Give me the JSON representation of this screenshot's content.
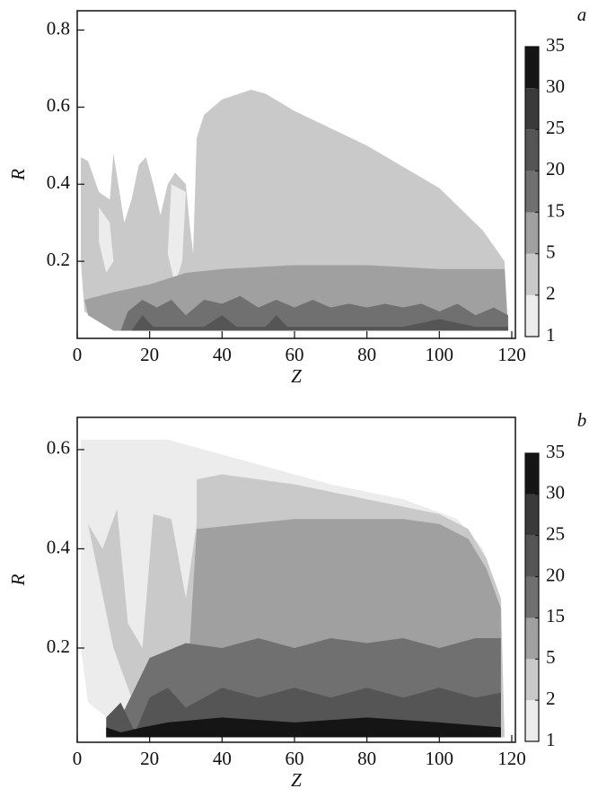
{
  "chart_data": [
    {
      "type": "heatmap",
      "panel_label": "a",
      "xlabel": "Z",
      "ylabel": "R",
      "xlim": [
        0,
        121
      ],
      "ylim": [
        0,
        0.85
      ],
      "xticks": [
        0,
        20,
        40,
        60,
        80,
        100,
        120
      ],
      "yticks": [
        0.2,
        0.4,
        0.6,
        0.8
      ],
      "colorbar": {
        "levels": [
          1,
          2,
          5,
          15,
          20,
          25,
          30,
          35
        ],
        "colors": [
          "#ececec",
          "#c9c9c9",
          "#a0a0a0",
          "#707070",
          "#555555",
          "#3a3a3a",
          "#151515"
        ]
      },
      "regions": [
        {
          "level": 2,
          "points": [
            [
              1,
              0.47
            ],
            [
              3,
              0.46
            ],
            [
              6,
              0.38
            ],
            [
              9,
              0.36
            ],
            [
              10,
              0.48
            ],
            [
              11,
              0.42
            ],
            [
              13,
              0.3
            ],
            [
              15,
              0.36
            ],
            [
              17,
              0.45
            ],
            [
              19,
              0.47
            ],
            [
              21,
              0.4
            ],
            [
              23,
              0.32
            ],
            [
              25,
              0.4
            ],
            [
              27,
              0.43
            ],
            [
              30,
              0.4
            ],
            [
              31,
              0.3
            ],
            [
              32,
              0.22
            ],
            [
              33,
              0.52
            ],
            [
              35,
              0.58
            ],
            [
              40,
              0.62
            ],
            [
              48,
              0.645
            ],
            [
              52,
              0.635
            ],
            [
              60,
              0.59
            ],
            [
              80,
              0.5
            ],
            [
              100,
              0.39
            ],
            [
              112,
              0.28
            ],
            [
              118,
              0.2
            ],
            [
              119,
              0.02
            ],
            [
              10,
              0.02
            ],
            [
              2,
              0.07
            ],
            [
              1,
              0.2
            ]
          ]
        },
        {
          "level": 1,
          "points": [
            [
              6,
              0.34
            ],
            [
              9,
              0.3
            ],
            [
              10,
              0.2
            ],
            [
              8,
              0.17
            ],
            [
              6,
              0.25
            ]
          ]
        },
        {
          "level": 1,
          "points": [
            [
              26,
              0.4
            ],
            [
              30,
              0.38
            ],
            [
              29,
              0.2
            ],
            [
              27,
              0.14
            ],
            [
              25,
              0.22
            ]
          ]
        },
        {
          "level": 5,
          "points": [
            [
              2,
              0.1
            ],
            [
              10,
              0.12
            ],
            [
              20,
              0.14
            ],
            [
              30,
              0.17
            ],
            [
              40,
              0.18
            ],
            [
              60,
              0.19
            ],
            [
              80,
              0.19
            ],
            [
              100,
              0.18
            ],
            [
              118,
              0.18
            ],
            [
              119,
              0.02
            ],
            [
              10,
              0.02
            ],
            [
              3,
              0.06
            ]
          ]
        },
        {
          "level": 15,
          "points": [
            [
              12,
              0.02
            ],
            [
              14,
              0.07
            ],
            [
              18,
              0.1
            ],
            [
              22,
              0.08
            ],
            [
              26,
              0.1
            ],
            [
              30,
              0.06
            ],
            [
              35,
              0.1
            ],
            [
              40,
              0.09
            ],
            [
              45,
              0.11
            ],
            [
              50,
              0.08
            ],
            [
              55,
              0.1
            ],
            [
              60,
              0.08
            ],
            [
              65,
              0.1
            ],
            [
              70,
              0.08
            ],
            [
              75,
              0.09
            ],
            [
              80,
              0.08
            ],
            [
              85,
              0.09
            ],
            [
              90,
              0.08
            ],
            [
              95,
              0.09
            ],
            [
              100,
              0.07
            ],
            [
              105,
              0.09
            ],
            [
              110,
              0.06
            ],
            [
              115,
              0.08
            ],
            [
              119,
              0.06
            ],
            [
              119,
              0.02
            ]
          ]
        },
        {
          "level": 20,
          "points": [
            [
              15,
              0.02
            ],
            [
              18,
              0.06
            ],
            [
              21,
              0.03
            ],
            [
              35,
              0.03
            ],
            [
              40,
              0.06
            ],
            [
              44,
              0.03
            ],
            [
              52,
              0.03
            ],
            [
              55,
              0.06
            ],
            [
              58,
              0.03
            ],
            [
              90,
              0.03
            ],
            [
              100,
              0.05
            ],
            [
              110,
              0.03
            ],
            [
              119,
              0.03
            ],
            [
              119,
              0.02
            ]
          ]
        }
      ]
    },
    {
      "type": "heatmap",
      "panel_label": "b",
      "xlabel": "Z",
      "ylabel": "R",
      "xlim": [
        0,
        121
      ],
      "ylim": [
        0.01,
        0.665
      ],
      "xticks": [
        0,
        20,
        40,
        60,
        80,
        100,
        120
      ],
      "yticks": [
        0.2,
        0.4,
        0.6
      ],
      "colorbar": {
        "levels": [
          1,
          2,
          5,
          15,
          20,
          25,
          30,
          35
        ],
        "colors": [
          "#ececec",
          "#c9c9c9",
          "#a0a0a0",
          "#707070",
          "#555555",
          "#3a3a3a",
          "#151515"
        ]
      },
      "regions": [
        {
          "level": 1,
          "points": [
            [
              1,
              0.62
            ],
            [
              25,
              0.62
            ],
            [
              35,
              0.6
            ],
            [
              50,
              0.57
            ],
            [
              70,
              0.53
            ],
            [
              90,
              0.5
            ],
            [
              105,
              0.46
            ],
            [
              112,
              0.4
            ],
            [
              117,
              0.3
            ],
            [
              118,
              0.02
            ],
            [
              15,
              0.02
            ],
            [
              10,
              0.05
            ],
            [
              3,
              0.09
            ],
            [
              1,
              0.2
            ]
          ]
        },
        {
          "level": 2,
          "points": [
            [
              33,
              0.54
            ],
            [
              40,
              0.55
            ],
            [
              60,
              0.53
            ],
            [
              80,
              0.5
            ],
            [
              100,
              0.47
            ],
            [
              108,
              0.44
            ],
            [
              113,
              0.38
            ],
            [
              117,
              0.3
            ],
            [
              118,
              0.02
            ],
            [
              20,
              0.02
            ],
            [
              15,
              0.1
            ],
            [
              10,
              0.2
            ],
            [
              3,
              0.45
            ],
            [
              7,
              0.4
            ],
            [
              11,
              0.48
            ],
            [
              14,
              0.25
            ],
            [
              18,
              0.2
            ],
            [
              21,
              0.47
            ],
            [
              26,
              0.46
            ],
            [
              30,
              0.3
            ],
            [
              33,
              0.45
            ]
          ]
        },
        {
          "level": 5,
          "points": [
            [
              33,
              0.44
            ],
            [
              60,
              0.46
            ],
            [
              90,
              0.46
            ],
            [
              100,
              0.45
            ],
            [
              108,
              0.42
            ],
            [
              113,
              0.36
            ],
            [
              117,
              0.28
            ],
            [
              117,
              0.02
            ],
            [
              20,
              0.02
            ],
            [
              31,
              0.2
            ]
          ]
        },
        {
          "level": 15,
          "points": [
            [
              10,
              0.03
            ],
            [
              20,
              0.18
            ],
            [
              30,
              0.21
            ],
            [
              40,
              0.2
            ],
            [
              50,
              0.22
            ],
            [
              60,
              0.2
            ],
            [
              70,
              0.22
            ],
            [
              80,
              0.21
            ],
            [
              90,
              0.22
            ],
            [
              100,
              0.2
            ],
            [
              110,
              0.22
            ],
            [
              117,
              0.22
            ],
            [
              117,
              0.02
            ],
            [
              10,
              0.02
            ]
          ]
        },
        {
          "level": 20,
          "points": [
            [
              8,
              0.06
            ],
            [
              12,
              0.09
            ],
            [
              16,
              0.03
            ],
            [
              20,
              0.1
            ],
            [
              25,
              0.12
            ],
            [
              30,
              0.08
            ],
            [
              40,
              0.12
            ],
            [
              50,
              0.1
            ],
            [
              60,
              0.12
            ],
            [
              70,
              0.1
            ],
            [
              80,
              0.12
            ],
            [
              90,
              0.1
            ],
            [
              100,
              0.12
            ],
            [
              110,
              0.1
            ],
            [
              117,
              0.11
            ],
            [
              117,
              0.02
            ],
            [
              8,
              0.02
            ]
          ]
        },
        {
          "level": 30,
          "points": [
            [
              8,
              0.04
            ],
            [
              12,
              0.03
            ],
            [
              18,
              0.04
            ],
            [
              25,
              0.05
            ],
            [
              40,
              0.06
            ],
            [
              60,
              0.05
            ],
            [
              80,
              0.06
            ],
            [
              100,
              0.05
            ],
            [
              117,
              0.04
            ],
            [
              117,
              0.02
            ],
            [
              8,
              0.02
            ]
          ]
        }
      ]
    }
  ]
}
